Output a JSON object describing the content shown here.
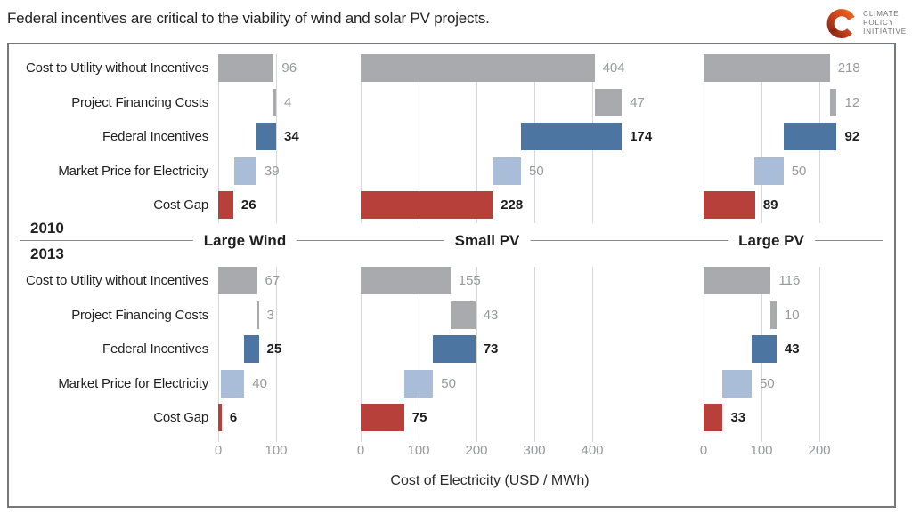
{
  "title": "Federal incentives are critical to the viability of wind and solar PV projects.",
  "logo": {
    "org_lines": [
      "CLIMATE",
      "POLICY",
      "INITIATIVE"
    ],
    "mark_color": "#d9531f",
    "mark_color_dark": "#96291a",
    "text_color": "#6f7073"
  },
  "chart_data": {
    "type": "bar",
    "variant": "horizontal-waterfall-small-multiples",
    "title": "Federal incentives are critical to the viability of wind and solar PV projects.",
    "xlabel": "Cost of Electricity (USD / MWh)",
    "categories": [
      "Cost to Utility without Incentives",
      "Project Financing Costs",
      "Federal Incentives",
      "Market Price for Electricity",
      "Cost Gap"
    ],
    "panel_titles": [
      "Large Wind",
      "Small PV",
      "Large PV"
    ],
    "year_groups": [
      {
        "year": "2010",
        "values": [
          [
            96,
            4,
            34,
            39,
            26
          ],
          [
            404,
            47,
            174,
            50,
            228
          ],
          [
            218,
            12,
            92,
            50,
            89
          ]
        ]
      },
      {
        "year": "2013",
        "values": [
          [
            67,
            3,
            25,
            40,
            6
          ],
          [
            155,
            43,
            73,
            50,
            75
          ],
          [
            116,
            10,
            43,
            50,
            33
          ]
        ]
      }
    ],
    "axes": {
      "ticks": [
        [
          0,
          100
        ],
        [
          0,
          100,
          200,
          300,
          400
        ],
        [
          0,
          100,
          200
        ]
      ],
      "grid": true,
      "legend": "none"
    },
    "colors": {
      "cost_bar": "#a8aaad",
      "financing_bar": "#a8aaad",
      "federal_incentives_bar": "#4c75a1",
      "market_price_bar": "#a9bdd8",
      "cost_gap_bar": "#b8403a",
      "grid": "#d7d8d9",
      "value_muted": "#97999c",
      "value_strong": "#1d1d1d",
      "axis_text": "#96989b",
      "divider": "#87898c",
      "frame_border": "#77787b"
    }
  }
}
